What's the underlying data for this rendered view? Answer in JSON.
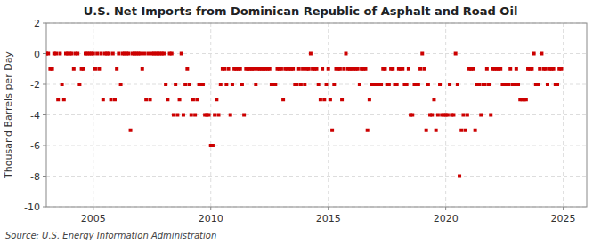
{
  "chart_data": {
    "type": "scatter",
    "title": "U.S. Net Imports from Dominican Republic of Asphalt and Road Oil",
    "y_label": "Thousand Barrels per Day",
    "annotations": [
      "Source: U.S. Energy Information Administration"
    ],
    "color": "#cc0000",
    "marker": "square",
    "grid": true,
    "xlim": [
      2003.0,
      2026.0
    ],
    "xticks": [
      2005,
      2010,
      2015,
      2020,
      2025
    ],
    "ylim": [
      -10,
      2
    ],
    "yticks": [
      -10,
      -8,
      -6,
      -4,
      -2,
      0,
      2
    ],
    "x": [
      2003.0,
      2003.083,
      2003.167,
      2003.25,
      2003.333,
      2003.417,
      2003.5,
      2003.583,
      2003.667,
      2003.75,
      2003.833,
      2003.917,
      2004.0,
      2004.083,
      2004.167,
      2004.25,
      2004.333,
      2004.417,
      2004.5,
      2004.583,
      2004.667,
      2004.75,
      2004.833,
      2004.917,
      2005.0,
      2005.083,
      2005.167,
      2005.25,
      2005.333,
      2005.417,
      2005.5,
      2005.583,
      2005.667,
      2005.75,
      2005.833,
      2005.917,
      2006.0,
      2006.083,
      2006.167,
      2006.25,
      2006.333,
      2006.417,
      2006.5,
      2006.583,
      2006.667,
      2006.75,
      2006.833,
      2006.917,
      2007.0,
      2007.083,
      2007.167,
      2007.25,
      2007.333,
      2007.417,
      2007.5,
      2007.583,
      2007.667,
      2007.75,
      2007.833,
      2007.917,
      2008.0,
      2008.083,
      2008.167,
      2008.25,
      2008.333,
      2008.417,
      2008.5,
      2008.583,
      2008.667,
      2008.75,
      2008.833,
      2008.917,
      2009.0,
      2009.083,
      2009.167,
      2009.25,
      2009.333,
      2009.417,
      2009.5,
      2009.583,
      2009.667,
      2009.75,
      2009.833,
      2009.917,
      2010.0,
      2010.083,
      2010.167,
      2010.25,
      2010.333,
      2010.417,
      2010.5,
      2010.583,
      2010.667,
      2010.75,
      2010.833,
      2010.917,
      2011.0,
      2011.083,
      2011.167,
      2011.25,
      2011.333,
      2011.417,
      2011.5,
      2011.583,
      2011.667,
      2011.75,
      2011.833,
      2011.917,
      2012.0,
      2012.083,
      2012.167,
      2012.25,
      2012.333,
      2012.417,
      2012.5,
      2012.583,
      2012.667,
      2012.75,
      2012.833,
      2012.917,
      2013.0,
      2013.083,
      2013.167,
      2013.25,
      2013.333,
      2013.417,
      2013.5,
      2013.583,
      2013.667,
      2013.75,
      2013.833,
      2013.917,
      2014.0,
      2014.083,
      2014.167,
      2014.25,
      2014.333,
      2014.417,
      2014.5,
      2014.583,
      2014.667,
      2014.75,
      2014.833,
      2014.917,
      2015.0,
      2015.083,
      2015.167,
      2015.25,
      2015.333,
      2015.417,
      2015.5,
      2015.583,
      2015.667,
      2015.75,
      2015.833,
      2015.917,
      2016.0,
      2016.083,
      2016.167,
      2016.25,
      2016.333,
      2016.417,
      2016.5,
      2016.583,
      2016.667,
      2016.75,
      2016.833,
      2016.917,
      2017.0,
      2017.083,
      2017.167,
      2017.25,
      2017.333,
      2017.417,
      2017.5,
      2017.583,
      2017.667,
      2017.75,
      2017.833,
      2017.917,
      2018.0,
      2018.083,
      2018.167,
      2018.25,
      2018.333,
      2018.417,
      2018.5,
      2018.583,
      2018.667,
      2018.75,
      2018.833,
      2018.917,
      2019.0,
      2019.083,
      2019.167,
      2019.25,
      2019.333,
      2019.417,
      2019.5,
      2019.583,
      2019.667,
      2019.75,
      2019.833,
      2019.917,
      2020.0,
      2020.083,
      2020.167,
      2020.25,
      2020.333,
      2020.417,
      2020.5,
      2020.583,
      2020.667,
      2020.75,
      2020.833,
      2020.917,
      2021.0,
      2021.083,
      2021.167,
      2021.25,
      2021.333,
      2021.417,
      2021.5,
      2021.583,
      2021.667,
      2021.75,
      2021.833,
      2021.917,
      2022.0,
      2022.083,
      2022.167,
      2022.25,
      2022.333,
      2022.417,
      2022.5,
      2022.583,
      2022.667,
      2022.75,
      2022.833,
      2022.917,
      2023.0,
      2023.083,
      2023.167,
      2023.25,
      2023.333,
      2023.417,
      2023.5,
      2023.583,
      2023.667,
      2023.75,
      2023.833,
      2023.917,
      2024.0,
      2024.083,
      2024.167,
      2024.25,
      2024.333,
      2024.417,
      2024.5,
      2024.583,
      2024.667,
      2024.75,
      2024.833,
      2024.917
    ],
    "values": [
      0,
      0,
      -1,
      -1,
      0,
      0,
      -3,
      0,
      -2,
      -3,
      0,
      0,
      0,
      0,
      -1,
      0,
      0,
      -2,
      -1,
      -1,
      0,
      0,
      0,
      0,
      0,
      -1,
      0,
      -1,
      0,
      -3,
      0,
      0,
      0,
      -3,
      0,
      -3,
      -1,
      0,
      -2,
      0,
      0,
      0,
      0,
      -5,
      0,
      0,
      0,
      0,
      0,
      -1,
      0,
      -3,
      0,
      -3,
      0,
      0,
      0,
      0,
      0,
      0,
      0,
      -2,
      -3,
      0,
      0,
      -4,
      -2,
      -4,
      -3,
      0,
      -4,
      -2,
      -1,
      -2,
      -4,
      -3,
      -4,
      -3,
      -2,
      -2,
      -2,
      -4,
      -4,
      -4,
      -6,
      -6,
      -4,
      -3,
      -4,
      -2,
      -1,
      -1,
      -2,
      -1,
      -4,
      -2,
      -1,
      -1,
      -1,
      -1,
      -2,
      -4,
      -1,
      -1,
      -1,
      -1,
      -1,
      -2,
      -1,
      -1,
      -1,
      -1,
      -1,
      -1,
      -1,
      -2,
      -2,
      -2,
      -1,
      -1,
      -1,
      -3,
      -1,
      -1,
      -1,
      -1,
      -1,
      -2,
      -2,
      -1,
      -2,
      -1,
      -2,
      -1,
      -1,
      0,
      -1,
      -1,
      -1,
      -2,
      -3,
      -1,
      -3,
      -2,
      -1,
      -3,
      -5,
      -2,
      -1,
      -1,
      -1,
      -3,
      -1,
      0,
      -1,
      -1,
      -1,
      -1,
      -1,
      -1,
      -2,
      -1,
      -1,
      -1,
      -5,
      -3,
      -2,
      -2,
      -2,
      -2,
      -2,
      -2,
      -1,
      -1,
      -2,
      -2,
      -1,
      -1,
      -2,
      -2,
      -1,
      -1,
      -1,
      -2,
      -2,
      -1,
      -4,
      -4,
      -2,
      -2,
      -2,
      -1,
      0,
      -1,
      -5,
      -2,
      -4,
      -4,
      -3,
      -5,
      -4,
      -2,
      -4,
      -4,
      -4,
      -4,
      -2,
      -4,
      -4,
      0,
      -2,
      -8,
      -5,
      -4,
      -5,
      -4,
      -1,
      -1,
      -1,
      -5,
      -2,
      -2,
      -4,
      -2,
      -2,
      -1,
      -2,
      -4,
      -1,
      -1,
      -1,
      -1,
      -1,
      -2,
      -2,
      -2,
      -2,
      -1,
      -2,
      -2,
      -1,
      -2,
      -3,
      -3,
      -3,
      -3,
      -1,
      -1,
      -1,
      0,
      -2,
      -2,
      -1,
      0,
      -1,
      -1,
      -2,
      -1,
      -1,
      -1,
      -2,
      -2,
      -1,
      -1
    ]
  }
}
